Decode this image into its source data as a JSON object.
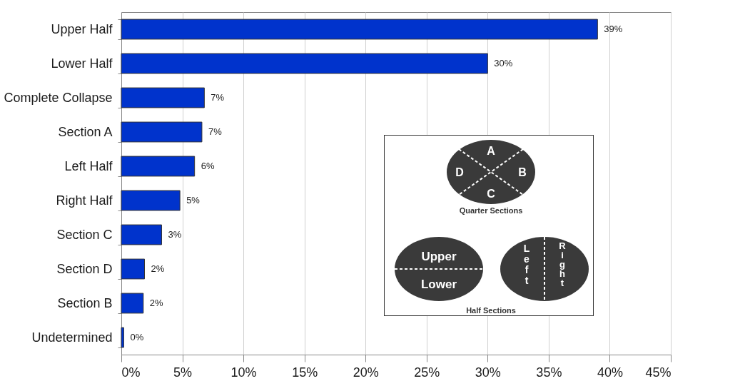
{
  "chart_data": {
    "type": "bar",
    "orientation": "horizontal",
    "categories": [
      "Upper Half",
      "Lower Half",
      "Complete Collapse",
      "Section A",
      "Left Half",
      "Right Half",
      "Section C",
      "Section D",
      "Section B",
      "Undetermined"
    ],
    "values": [
      39,
      30,
      6.8,
      6.6,
      6.0,
      4.8,
      3.3,
      1.9,
      1.8,
      0.2
    ],
    "value_labels": [
      "39%",
      "30%",
      "7%",
      "7%",
      "6%",
      "5%",
      "3%",
      "2%",
      "2%",
      "0%"
    ],
    "color": "#0033cc",
    "xlim": [
      0,
      45
    ],
    "xticks": [
      {
        "value": 0,
        "label": "0%"
      },
      {
        "value": 5,
        "label": "5%"
      },
      {
        "value": 10,
        "label": "10%"
      },
      {
        "value": 15,
        "label": "15%"
      },
      {
        "value": 20,
        "label": "20%"
      },
      {
        "value": 25,
        "label": "25%"
      },
      {
        "value": 30,
        "label": "30%"
      },
      {
        "value": 35,
        "label": "35%"
      },
      {
        "value": 40,
        "label": "40%"
      },
      {
        "value": 45,
        "label": "45%"
      }
    ],
    "grid": "x",
    "annotations": [
      "A",
      "B",
      "C",
      "D",
      "Quarter Sections",
      "Upper",
      "Lower",
      "Left",
      "Right",
      "Half Sections"
    ]
  }
}
